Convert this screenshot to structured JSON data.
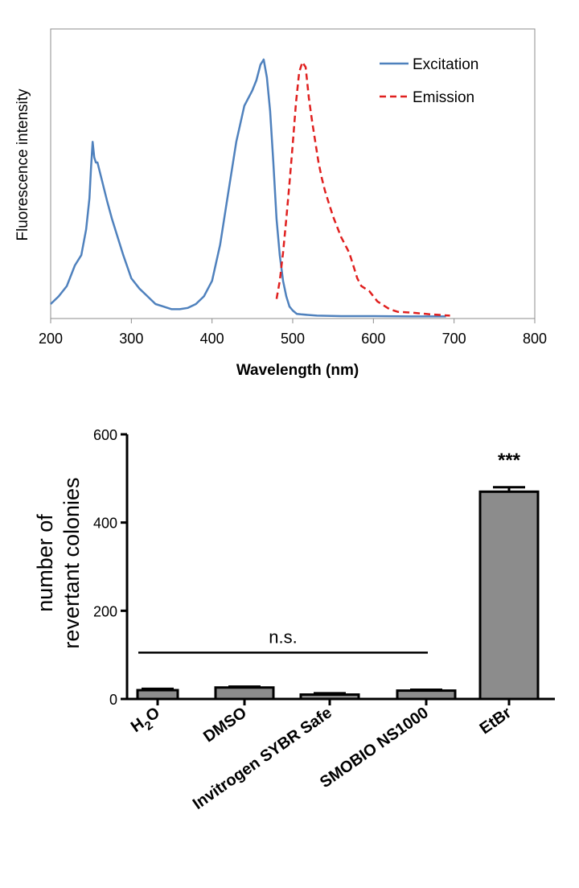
{
  "chart_data": [
    {
      "type": "line",
      "title": "",
      "xlabel": "Wavelength (nm)",
      "ylabel": "Fluorescence intensity",
      "xlim": [
        200,
        800
      ],
      "ylim": [
        0,
        1
      ],
      "x_ticks": [
        "200",
        "300",
        "400",
        "500",
        "600",
        "700",
        "800"
      ],
      "grid": false,
      "legend": "top-right",
      "series": [
        {
          "name": "Excitation",
          "color": "#4f81bd",
          "style": "solid",
          "points": [
            [
              200,
              0.05
            ],
            [
              210,
              0.08
            ],
            [
              220,
              0.12
            ],
            [
              230,
              0.2
            ],
            [
              238,
              0.24
            ],
            [
              244,
              0.34
            ],
            [
              248,
              0.46
            ],
            [
              250,
              0.58
            ],
            [
              252,
              0.68
            ],
            [
              254,
              0.62
            ],
            [
              256,
              0.6
            ],
            [
              258,
              0.6
            ],
            [
              262,
              0.55
            ],
            [
              266,
              0.5
            ],
            [
              270,
              0.45
            ],
            [
              276,
              0.38
            ],
            [
              282,
              0.32
            ],
            [
              290,
              0.24
            ],
            [
              300,
              0.15
            ],
            [
              310,
              0.11
            ],
            [
              320,
              0.08
            ],
            [
              330,
              0.05
            ],
            [
              340,
              0.04
            ],
            [
              350,
              0.03
            ],
            [
              360,
              0.03
            ],
            [
              370,
              0.035
            ],
            [
              380,
              0.05
            ],
            [
              390,
              0.08
            ],
            [
              400,
              0.14
            ],
            [
              410,
              0.28
            ],
            [
              420,
              0.48
            ],
            [
              430,
              0.68
            ],
            [
              440,
              0.82
            ],
            [
              450,
              0.88
            ],
            [
              455,
              0.92
            ],
            [
              460,
              0.98
            ],
            [
              464,
              1.0
            ],
            [
              468,
              0.93
            ],
            [
              472,
              0.8
            ],
            [
              476,
              0.6
            ],
            [
              480,
              0.38
            ],
            [
              484,
              0.24
            ],
            [
              488,
              0.14
            ],
            [
              492,
              0.08
            ],
            [
              496,
              0.04
            ],
            [
              500,
              0.025
            ],
            [
              505,
              0.012
            ],
            [
              510,
              0.01
            ],
            [
              530,
              0.005
            ],
            [
              560,
              0.003
            ],
            [
              600,
              0.003
            ],
            [
              650,
              0.002
            ],
            [
              690,
              0.002
            ]
          ]
        },
        {
          "name": "Emission",
          "color": "#e0201f",
          "style": "dashed",
          "points": [
            [
              480,
              0.07
            ],
            [
              484,
              0.14
            ],
            [
              488,
              0.25
            ],
            [
              492,
              0.38
            ],
            [
              496,
              0.52
            ],
            [
              500,
              0.67
            ],
            [
              504,
              0.83
            ],
            [
              508,
              0.95
            ],
            [
              512,
              0.99
            ],
            [
              516,
              0.97
            ],
            [
              520,
              0.85
            ],
            [
              524,
              0.76
            ],
            [
              528,
              0.68
            ],
            [
              532,
              0.6
            ],
            [
              536,
              0.54
            ],
            [
              540,
              0.49
            ],
            [
              545,
              0.44
            ],
            [
              550,
              0.39
            ],
            [
              555,
              0.35
            ],
            [
              560,
              0.31
            ],
            [
              565,
              0.28
            ],
            [
              570,
              0.25
            ],
            [
              575,
              0.2
            ],
            [
              580,
              0.15
            ],
            [
              585,
              0.12
            ],
            [
              590,
              0.11
            ],
            [
              595,
              0.1
            ],
            [
              600,
              0.08
            ],
            [
              605,
              0.06
            ],
            [
              610,
              0.05
            ],
            [
              620,
              0.03
            ],
            [
              630,
              0.02
            ],
            [
              640,
              0.018
            ],
            [
              650,
              0.016
            ],
            [
              660,
              0.013
            ],
            [
              670,
              0.01
            ],
            [
              680,
              0.008
            ],
            [
              690,
              0.006
            ],
            [
              695,
              0.005
            ]
          ]
        }
      ]
    },
    {
      "type": "bar",
      "title": "",
      "xlabel": "",
      "ylabel": "number of revertant colonies",
      "ylabel_lines": [
        "number of",
        "revertant colonies"
      ],
      "ylim": [
        0,
        600
      ],
      "y_ticks": [
        "0",
        "200",
        "400",
        "600"
      ],
      "bar_color": "#8c8c8c",
      "categories": [
        {
          "label": "H",
          "subscript": "2",
          "suffix": "O"
        },
        {
          "label": "DMSO"
        },
        {
          "label": "Invitrogen SYBR Safe"
        },
        {
          "label": "SMOBIO NS1000"
        },
        {
          "label": "EtBr"
        }
      ],
      "category_names": [
        "H2O",
        "DMSO",
        "Invitrogen SYBR Safe",
        "SMOBIO NS1000",
        "EtBr"
      ],
      "values": [
        20,
        26,
        10,
        19,
        470
      ],
      "errors": [
        3,
        2,
        3,
        2,
        10
      ],
      "annotations": {
        "ns_label": "n.s.",
        "ns_span": [
          "H2O",
          "SMOBIO NS1000"
        ],
        "ns_y": 105,
        "significance": "***",
        "significance_category": "EtBr"
      }
    }
  ]
}
